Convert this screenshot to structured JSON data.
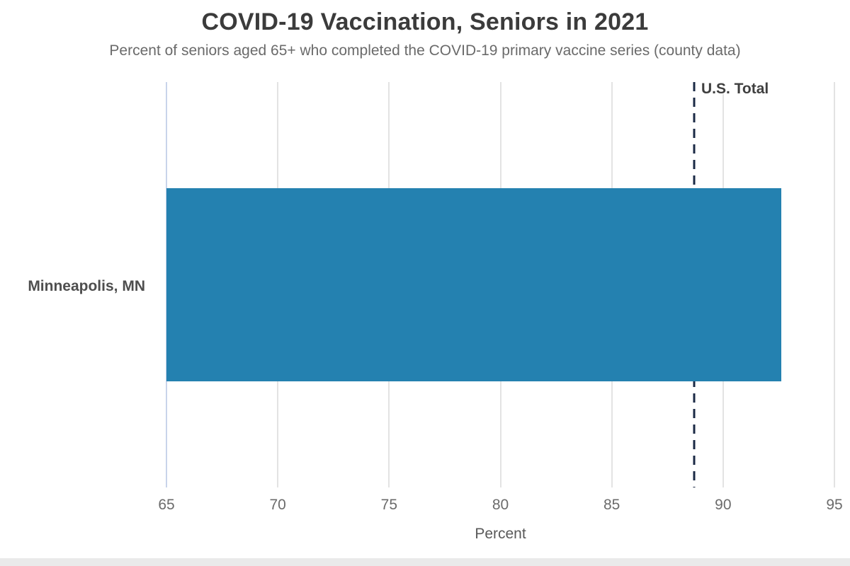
{
  "chart_data": {
    "type": "bar",
    "orientation": "horizontal",
    "title": "COVID-19 Vaccination, Seniors in 2021",
    "subtitle": "Percent of seniors aged 65+ who completed the COVID-19 primary vaccine series (county data)",
    "categories": [
      "Minneapolis, MN"
    ],
    "values": [
      92.6
    ],
    "xlabel": "Percent",
    "xlim": [
      65,
      95
    ],
    "xticks": [
      65,
      70,
      75,
      80,
      85,
      90,
      95
    ],
    "grid": true,
    "legend": "none",
    "bar_color": "#2481b0",
    "reference_line": {
      "label": "U.S. Total",
      "value": 88.7,
      "color": "#1b2a45"
    }
  }
}
